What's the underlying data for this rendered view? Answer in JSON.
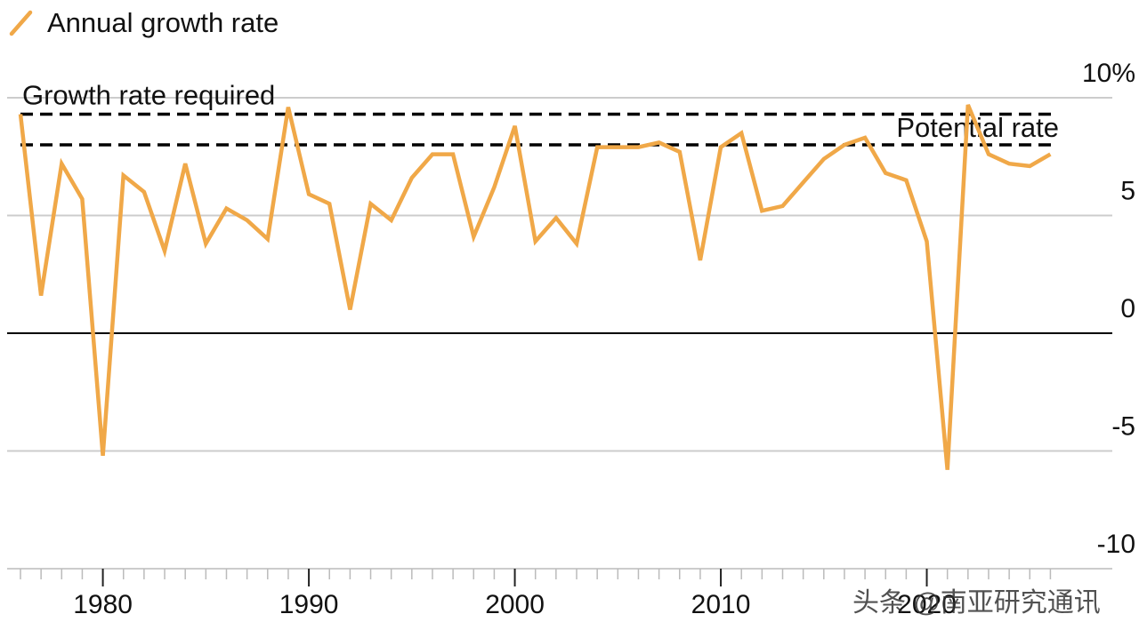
{
  "legend": {
    "label": "Annual growth rate",
    "color": "#f0a848"
  },
  "reference_lines": [
    {
      "label": "Growth rate required",
      "value": 9.3,
      "style": "dashed"
    },
    {
      "label": "Potential rate",
      "value": 8.0,
      "style": "dashed"
    }
  ],
  "watermark": "头条 @南亚研究通讯",
  "colors": {
    "series": "#f0a848",
    "grid": "#cccccc",
    "zero_line": "#000000",
    "reference": "#000000",
    "text": "#111111"
  },
  "chart_data": {
    "type": "line",
    "title": "",
    "xlabel": "",
    "ylabel": "",
    "x_ticks": [
      "1980",
      "1990",
      "2000",
      "2010",
      "2020"
    ],
    "y_ticks": [
      "10%",
      "5",
      "0",
      "-5",
      "-10"
    ],
    "y_tick_values": [
      10,
      5,
      0,
      -5,
      -10
    ],
    "xlim": [
      1976,
      2026.5
    ],
    "ylim": [
      -10,
      10
    ],
    "grid": true,
    "legend_position": "top-left",
    "series": [
      {
        "name": "Annual growth rate",
        "x": [
          1976,
          1977,
          1978,
          1979,
          1980,
          1981,
          1982,
          1983,
          1984,
          1985,
          1986,
          1987,
          1988,
          1989,
          1990,
          1991,
          1992,
          1993,
          1994,
          1995,
          1996,
          1997,
          1998,
          1999,
          2000,
          2001,
          2002,
          2003,
          2004,
          2005,
          2006,
          2007,
          2008,
          2009,
          2010,
          2011,
          2012,
          2013,
          2014,
          2015,
          2016,
          2017,
          2018,
          2019,
          2020,
          2021,
          2022,
          2023,
          2024,
          2025,
          2026
        ],
        "values": [
          9.3,
          1.6,
          7.2,
          5.7,
          -5.2,
          6.7,
          6.0,
          3.5,
          7.2,
          3.8,
          5.3,
          4.8,
          4.0,
          9.6,
          5.9,
          5.5,
          1.0,
          5.5,
          4.8,
          6.6,
          7.6,
          7.6,
          4.1,
          6.2,
          8.8,
          3.9,
          4.9,
          3.8,
          7.9,
          7.9,
          7.9,
          8.1,
          7.7,
          3.1,
          7.9,
          8.5,
          5.2,
          5.4,
          6.4,
          7.4,
          8.0,
          8.3,
          6.8,
          6.5,
          3.9,
          -5.8,
          9.7,
          7.6,
          7.2,
          7.1,
          7.6
        ]
      }
    ]
  }
}
